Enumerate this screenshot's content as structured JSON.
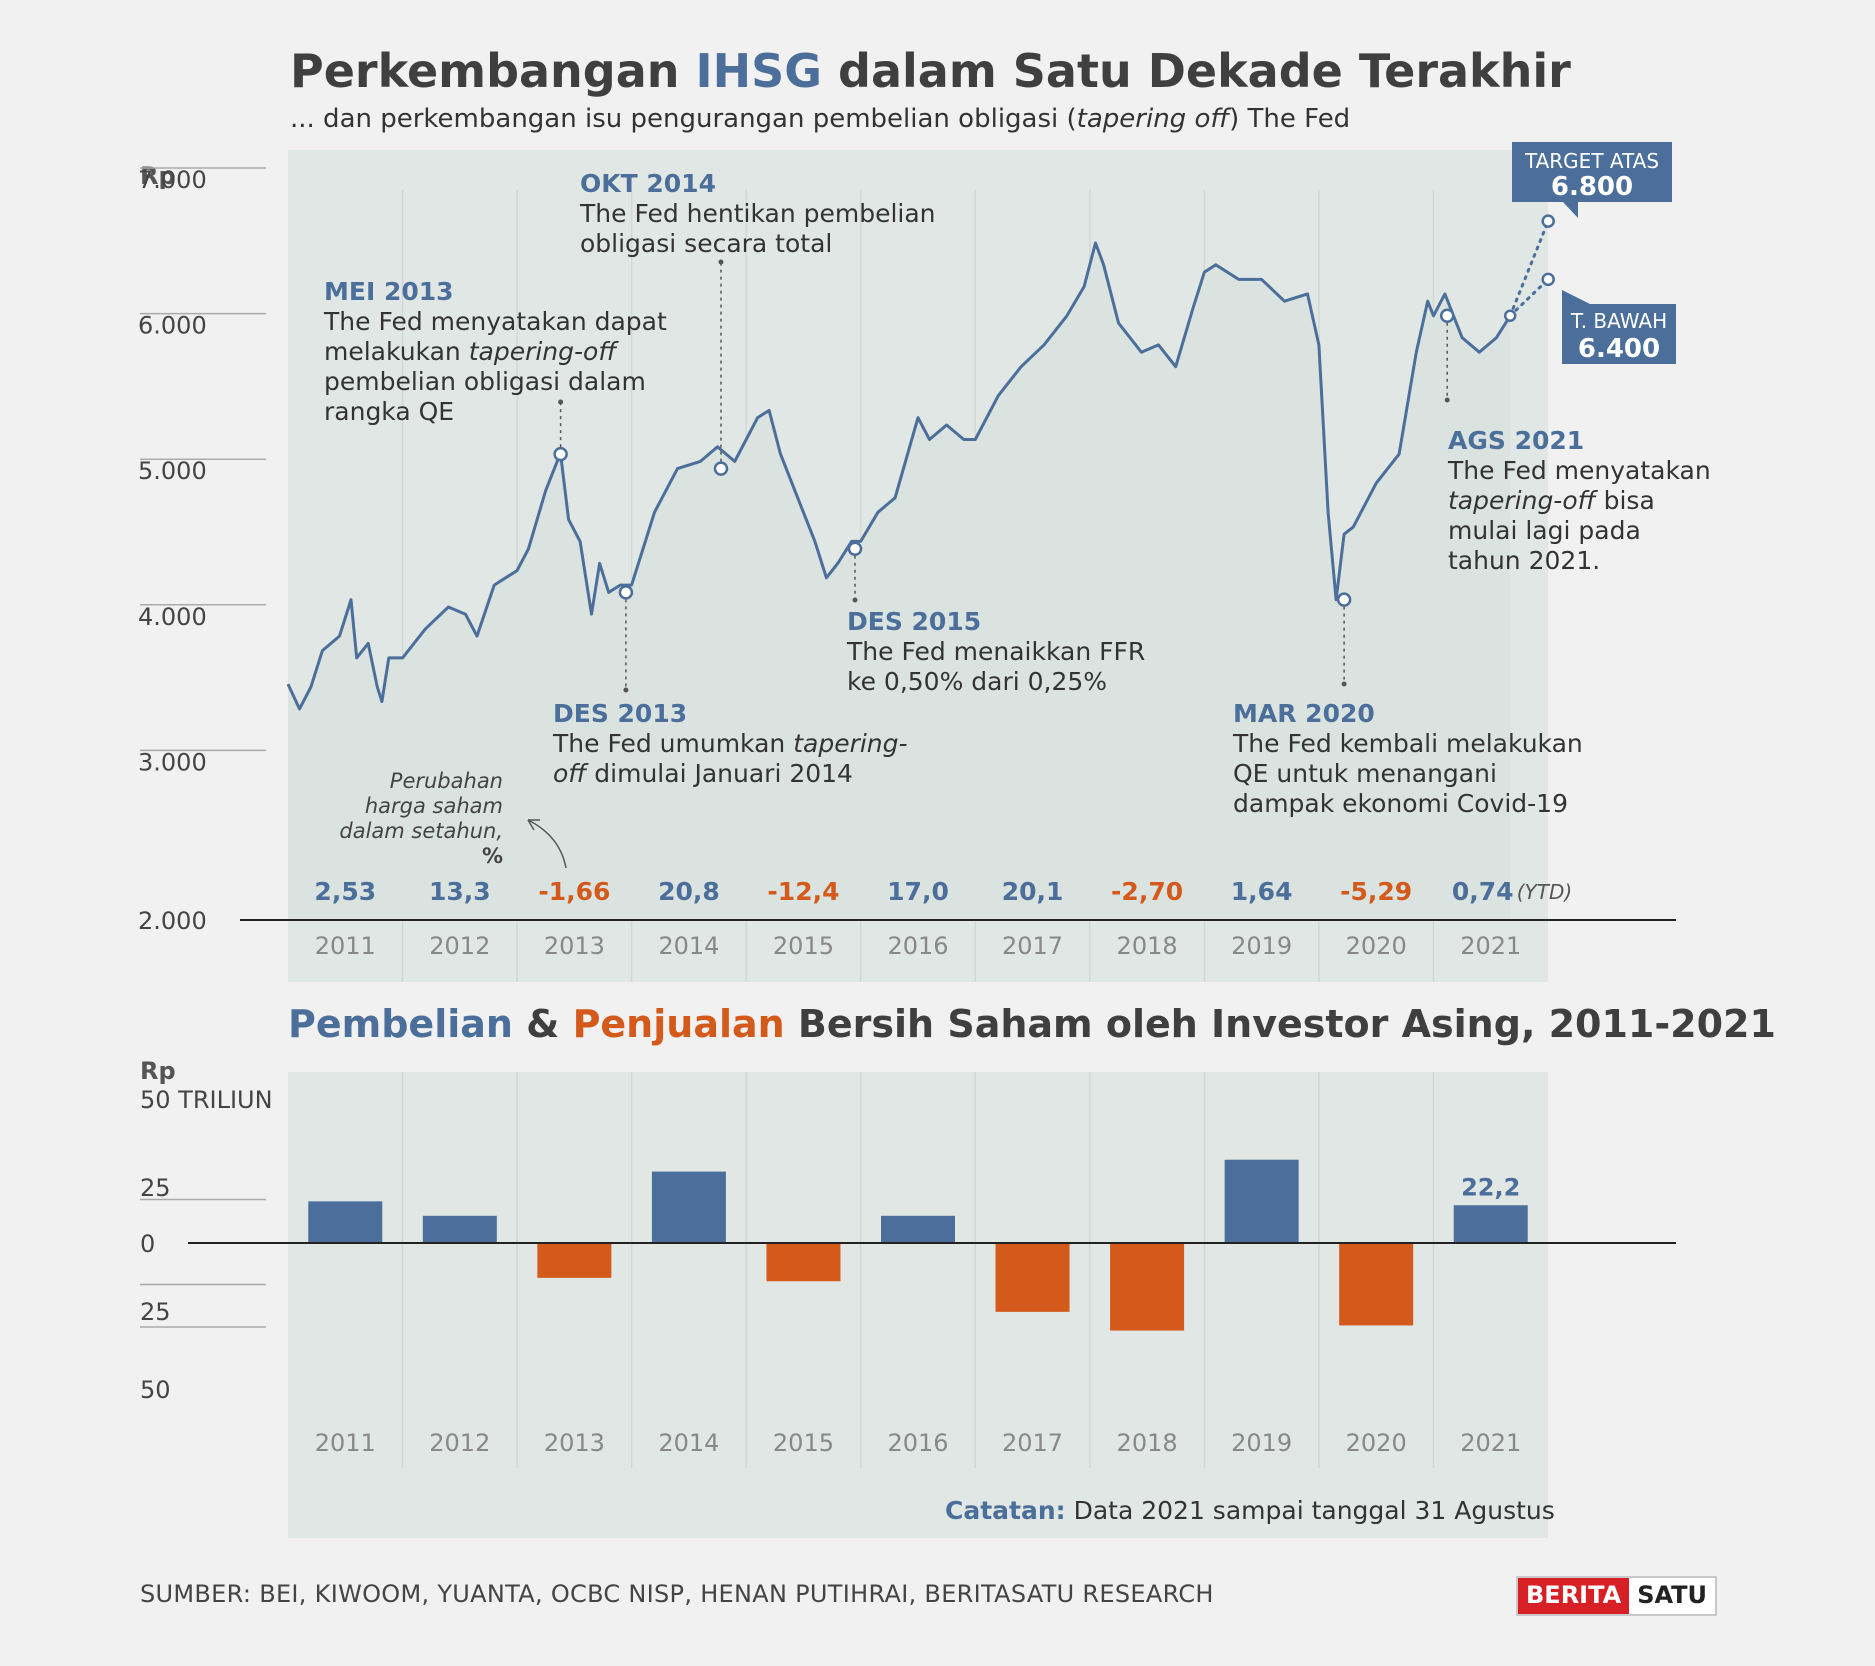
{
  "title": {
    "part1": "Perkembangan ",
    "highlight": "IHSG",
    "part2": " dalam Satu Dekade Terakhir"
  },
  "subtitle": {
    "part1": "... dan perkembangan isu pengurangan pembelian obligasi (",
    "italic": "tapering off",
    "part2": ") The Fed"
  },
  "colors": {
    "blue": "#4b6f9a",
    "orange": "#d35a1a",
    "panel": "#e1e7e5",
    "line": "#4b6f9a",
    "area": "#dbe3e1",
    "callout_box": "#4b6f9a"
  },
  "chart_data": [
    {
      "type": "line",
      "y_unit_label": "Rp",
      "y_ticks": [
        "7.000",
        "6.000",
        "5.000",
        "4.000",
        "3.000",
        "2.000"
      ],
      "ylim": [
        2000,
        7000
      ],
      "x_categories": [
        "2011",
        "2012",
        "2013",
        "2014",
        "2015",
        "2016",
        "2017",
        "2018",
        "2019",
        "2020",
        "2021"
      ],
      "series": [
        {
          "x": [
            2011.0,
            2011.1,
            2011.2,
            2011.3,
            2011.45,
            2011.55,
            2011.6,
            2011.7,
            2011.78,
            2011.82,
            2011.88,
            2012.0,
            2012.2,
            2012.4,
            2012.55,
            2012.65,
            2012.8,
            2012.9,
            2013.0,
            2013.1,
            2013.25,
            2013.35,
            2013.38,
            2013.45,
            2013.55,
            2013.65,
            2013.72,
            2013.8,
            2013.9,
            2014.0,
            2014.2,
            2014.4,
            2014.6,
            2014.75,
            2014.9,
            2015.0,
            2015.1,
            2015.2,
            2015.3,
            2015.45,
            2015.6,
            2015.7,
            2015.8,
            2015.92,
            2016.0,
            2016.15,
            2016.3,
            2016.5,
            2016.6,
            2016.75,
            2016.9,
            2017.0,
            2017.2,
            2017.4,
            2017.6,
            2017.8,
            2017.95,
            2018.05,
            2018.12,
            2018.25,
            2018.45,
            2018.6,
            2018.75,
            2018.9,
            2019.0,
            2019.1,
            2019.3,
            2019.5,
            2019.7,
            2019.9,
            2020.0,
            2020.08,
            2020.15,
            2020.22,
            2020.3,
            2020.5,
            2020.7,
            2020.85,
            2020.95,
            2021.0,
            2021.1,
            2021.25,
            2021.4,
            2021.55,
            2021.67
          ],
          "values": [
            3620,
            3450,
            3600,
            3850,
            3950,
            4200,
            3800,
            3900,
            3600,
            3500,
            3800,
            3800,
            4000,
            4150,
            4100,
            3950,
            4300,
            4350,
            4400,
            4550,
            4950,
            5150,
            5200,
            4750,
            4600,
            4100,
            4450,
            4250,
            4300,
            4300,
            4800,
            5100,
            5150,
            5250,
            5150,
            5300,
            5450,
            5500,
            5200,
            4900,
            4600,
            4350,
            4450,
            4600,
            4600,
            4800,
            4900,
            5450,
            5300,
            5400,
            5300,
            5300,
            5600,
            5800,
            5950,
            6150,
            6350,
            6650,
            6500,
            6100,
            5900,
            5950,
            5800,
            6200,
            6450,
            6500,
            6400,
            6400,
            6250,
            6300,
            5950,
            4800,
            4200,
            4650,
            4700,
            5000,
            5200,
            5900,
            6250,
            6150,
            6300,
            6000,
            5900,
            6000,
            6150
          ],
          "projection_high": 6800,
          "projection_low": 6400
        }
      ],
      "annotations": [
        {
          "title": "MEI 2013",
          "lines": [
            "The Fed menyatakan dapat",
            "melakukan |tapering-off|",
            "pembelian obligasi dalam",
            "rangka QE"
          ],
          "x": 2013.38,
          "y": 5200
        },
        {
          "title": "OKT 2014",
          "lines": [
            "The Fed hentikan pembelian",
            "obligasi secara total"
          ],
          "x": 2014.78,
          "y": 5100
        },
        {
          "title": "DES 2013",
          "lines": [
            "The Fed umumkan |tapering-|",
            "|off| dimulai Januari 2014"
          ],
          "x": 2013.95,
          "y": 4250
        },
        {
          "title": "DES 2015",
          "lines": [
            "The Fed menaikkan FFR",
            "ke 0,50% dari 0,25%"
          ],
          "x": 2015.95,
          "y": 4550
        },
        {
          "title": "MAR 2020",
          "lines": [
            "The Fed kembali melakukan",
            "QE untuk menangani",
            "dampak ekonomi Covid-19"
          ],
          "x": 2020.22,
          "y": 4200
        },
        {
          "title": "AGS 2021",
          "lines": [
            "The Fed menyatakan",
            "|tapering-off| bisa",
            "mulai lagi pada",
            "tahun 2021."
          ],
          "x": 2021.12,
          "y": 6150
        }
      ],
      "callouts": [
        {
          "label": "TARGET ATAS",
          "value": "6.800"
        },
        {
          "label": "T. BAWAH",
          "value": "6.400"
        }
      ],
      "yearly_change_label": [
        "Perubahan",
        "harga saham",
        "dalam setahun,",
        "%"
      ],
      "yearly_change": [
        {
          "year": "2011",
          "value": "2,53",
          "sign": "pos"
        },
        {
          "year": "2012",
          "value": "13,3",
          "sign": "pos"
        },
        {
          "year": "2013",
          "value": "-1,66",
          "sign": "neg"
        },
        {
          "year": "2014",
          "value": "20,8",
          "sign": "pos"
        },
        {
          "year": "2015",
          "value": "-12,4",
          "sign": "neg"
        },
        {
          "year": "2016",
          "value": "17,0",
          "sign": "pos"
        },
        {
          "year": "2017",
          "value": "20,1",
          "sign": "pos"
        },
        {
          "year": "2018",
          "value": "-2,70",
          "sign": "neg"
        },
        {
          "year": "2019",
          "value": "1,64",
          "sign": "pos"
        },
        {
          "year": "2020",
          "value": "-5,29",
          "sign": "neg"
        },
        {
          "year": "2021",
          "value": "0,74",
          "sign": "pos",
          "suffix": "(YTD)"
        }
      ]
    },
    {
      "type": "bar",
      "title_parts": {
        "blue": "Pembelian",
        "amp": " & ",
        "orange": "Penjualan",
        "rest": " Bersih Saham oleh Investor Asing, 2011-2021"
      },
      "y_unit_label": "Rp",
      "y_ticks": [
        "50 TRILIUN",
        "25",
        "0",
        "25",
        "50"
      ],
      "ylim": [
        -50,
        50
      ],
      "categories": [
        "2011",
        "2012",
        "2013",
        "2014",
        "2015",
        "2016",
        "2017",
        "2018",
        "2019",
        "2020",
        "2021"
      ],
      "values": [
        24.5,
        16,
        -20.5,
        42,
        -22.5,
        16,
        -40.5,
        -51.5,
        49,
        -48.5,
        22.2
      ],
      "data_labels": [
        "",
        "",
        "",
        "",
        "",
        "",
        "",
        "",
        "",
        "",
        "22,2"
      ]
    }
  ],
  "note": {
    "label": "Catatan:",
    "text": " Data 2021 sampai tanggal 31 Agustus"
  },
  "source": "SUMBER: BEI, KIWOOM, YUANTA,  OCBC NISP, HENAN PUTIHRAI, BERITASATU RESEARCH",
  "logo": {
    "part1": "BERITA",
    "part2": "SATU"
  }
}
